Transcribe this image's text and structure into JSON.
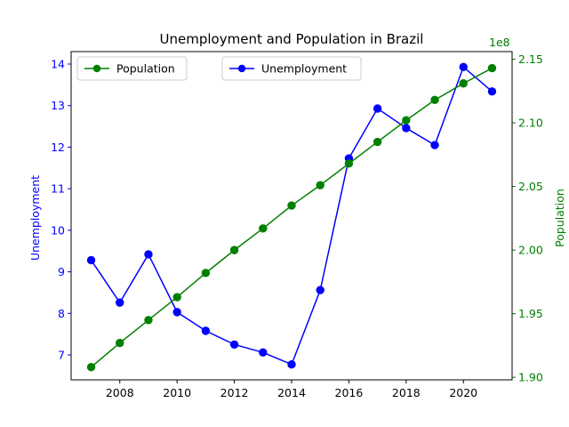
{
  "chart_data": {
    "type": "line",
    "title": "Unemployment and Population in Brazil",
    "x": [
      2007,
      2008,
      2009,
      2010,
      2011,
      2012,
      2013,
      2014,
      2015,
      2016,
      2017,
      2018,
      2019,
      2020,
      2021
    ],
    "x_ticks": [
      "2008",
      "2010",
      "2012",
      "2014",
      "2016",
      "2018",
      "2020"
    ],
    "x_tick_values": [
      2008,
      2010,
      2012,
      2014,
      2016,
      2018,
      2020
    ],
    "xlim": [
      2006.3,
      2021.7
    ],
    "y_left": {
      "label": "Unemployment",
      "color": "#0000ff",
      "lim": [
        6.4,
        14.3
      ],
      "ticks": [
        "7",
        "8",
        "9",
        "10",
        "11",
        "12",
        "13",
        "14"
      ],
      "tick_values": [
        7,
        8,
        9,
        10,
        11,
        12,
        13,
        14
      ]
    },
    "y_right": {
      "label": "Population",
      "color": "#008000",
      "multiplier": "1e8",
      "lim": [
        1.898,
        2.156
      ],
      "ticks": [
        "1.90",
        "1.95",
        "2.00",
        "2.05",
        "2.10",
        "2.15"
      ],
      "tick_values": [
        1.9,
        1.95,
        2.0,
        2.05,
        2.1,
        2.15
      ]
    },
    "series": [
      {
        "name": "Unemployment",
        "axis": "left",
        "color": "#0000ff",
        "values": [
          9.28,
          8.26,
          9.42,
          8.03,
          7.58,
          7.25,
          7.06,
          6.77,
          8.56,
          11.73,
          12.93,
          12.46,
          12.05,
          13.93,
          13.34
        ]
      },
      {
        "name": "Population",
        "axis": "right",
        "color": "#008000",
        "values": [
          1.908,
          1.927,
          1.945,
          1.963,
          1.982,
          2.0,
          2.017,
          2.035,
          2.051,
          2.068,
          2.085,
          2.102,
          2.118,
          2.131,
          2.143
        ]
      }
    ],
    "legends": [
      {
        "position": "upper-left",
        "entries": [
          "Population"
        ]
      },
      {
        "position": "upper-center",
        "entries": [
          "Unemployment"
        ]
      }
    ],
    "grid": false
  }
}
